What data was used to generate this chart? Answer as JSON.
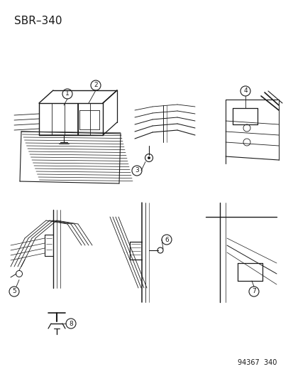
{
  "title": "SBR–340",
  "ref_number": "94367  340",
  "background_color": "#ffffff",
  "line_color": "#1a1a1a",
  "title_fontsize": 11,
  "ref_fontsize": 7,
  "callout_fontsize": 6.5,
  "figsize": [
    4.14,
    5.33
  ],
  "dpi": 100
}
